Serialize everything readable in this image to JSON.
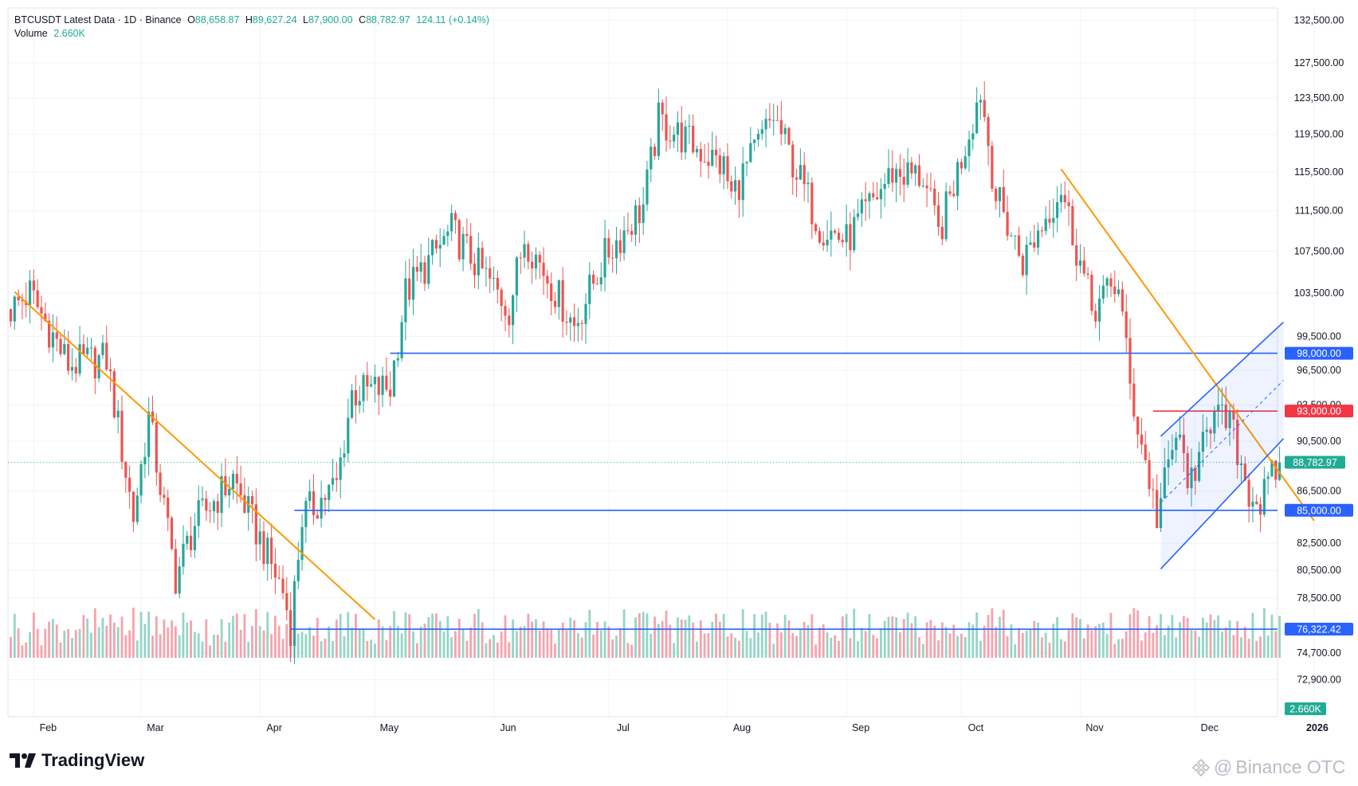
{
  "header": {
    "symbol": "BTCUSDT Latest Data · 1D · Binance",
    "open_label": "O",
    "open": "88,658.87",
    "high_label": "H",
    "high": "89,627.24",
    "low_label": "L",
    "low": "87,900.00",
    "close_label": "C",
    "close": "88,782.97",
    "change": "124.11 (+0.14%)",
    "volume_label": "Volume",
    "volume": "2.660K"
  },
  "brand": {
    "name": "TradingView"
  },
  "watermark": {
    "text": "Binance OTC"
  },
  "colors": {
    "up": "#26a69a",
    "down": "#ef5350",
    "up_vol": "#95d5c6",
    "down_vol": "#f5a3ac",
    "support": "#2962ff",
    "resistance": "#f23645",
    "trend": "#ff9800",
    "grid": "#f0f3fa"
  },
  "chart_data": {
    "type": "candlestick",
    "title": "BTCUSDT Latest Data · 1D · Binance",
    "x_tick_labels": [
      "Feb",
      "Mar",
      "Apr",
      "May",
      "Jun",
      "Jul",
      "Aug",
      "Sep",
      "Oct",
      "Nov",
      "Dec",
      "2026"
    ],
    "y_tick_labels": [
      "72,900.00",
      "74,700.00",
      "78,500.00",
      "80,500.00",
      "82,500.00",
      "86,500.00",
      "90,500.00",
      "93,500.00",
      "96,500.00",
      "99,500.00",
      "103,500.00",
      "107,500.00",
      "111,500.00",
      "115,500.00",
      "119,500.00",
      "123,500.00",
      "127,500.00",
      "132,500.00"
    ],
    "ylim": [
      70500,
      134000
    ],
    "y_scale": "log",
    "price_path": [
      {
        "date": "2025-01-26",
        "price": 102000
      },
      {
        "date": "2025-01-31",
        "price": 103500
      },
      {
        "date": "2025-02-10",
        "price": 97000
      },
      {
        "date": "2025-02-20",
        "price": 97500
      },
      {
        "date": "2025-02-27",
        "price": 84500
      },
      {
        "date": "2025-03-03",
        "price": 92500
      },
      {
        "date": "2025-03-10",
        "price": 80000
      },
      {
        "date": "2025-03-15",
        "price": 84000
      },
      {
        "date": "2025-03-25",
        "price": 87500
      },
      {
        "date": "2025-04-07",
        "price": 79000
      },
      {
        "date": "2025-04-09",
        "price": 76500
      },
      {
        "date": "2025-04-12",
        "price": 84500
      },
      {
        "date": "2025-04-21",
        "price": 87000
      },
      {
        "date": "2025-04-25",
        "price": 94500
      },
      {
        "date": "2025-05-05",
        "price": 95000
      },
      {
        "date": "2025-05-09",
        "price": 103500
      },
      {
        "date": "2025-05-21",
        "price": 109500
      },
      {
        "date": "2025-05-30",
        "price": 105000
      },
      {
        "date": "2025-06-05",
        "price": 102000
      },
      {
        "date": "2025-06-09",
        "price": 109000
      },
      {
        "date": "2025-06-22",
        "price": 100500
      },
      {
        "date": "2025-06-30",
        "price": 107000
      },
      {
        "date": "2025-07-10",
        "price": 112000
      },
      {
        "date": "2025-07-14",
        "price": 121000
      },
      {
        "date": "2025-07-31",
        "price": 116000
      },
      {
        "date": "2025-08-02",
        "price": 113000
      },
      {
        "date": "2025-08-13",
        "price": 121500
      },
      {
        "date": "2025-08-17",
        "price": 117500
      },
      {
        "date": "2025-08-25",
        "price": 110000
      },
      {
        "date": "2025-09-01",
        "price": 108500
      },
      {
        "date": "2025-09-13",
        "price": 115500
      },
      {
        "date": "2025-09-21",
        "price": 115000
      },
      {
        "date": "2025-09-25",
        "price": 109000
      },
      {
        "date": "2025-10-01",
        "price": 117000
      },
      {
        "date": "2025-10-06",
        "price": 124500
      },
      {
        "date": "2025-10-10",
        "price": 113000
      },
      {
        "date": "2025-10-17",
        "price": 106500
      },
      {
        "date": "2025-10-27",
        "price": 114000
      },
      {
        "date": "2025-11-04",
        "price": 102000
      },
      {
        "date": "2025-11-11",
        "price": 104500
      },
      {
        "date": "2025-11-14",
        "price": 95000
      },
      {
        "date": "2025-11-21",
        "price": 84500
      },
      {
        "date": "2025-11-26",
        "price": 91000
      },
      {
        "date": "2025-12-01",
        "price": 86000
      },
      {
        "date": "2025-12-03",
        "price": 92500
      },
      {
        "date": "2025-12-10",
        "price": 92000
      },
      {
        "date": "2025-12-15",
        "price": 86500
      },
      {
        "date": "2025-12-18",
        "price": 85500
      },
      {
        "date": "2025-12-23",
        "price": 88783
      }
    ],
    "horizontal_levels": [
      {
        "price": 98000,
        "label": "98,000.00",
        "color": "#2962ff",
        "from": "2025-05-05"
      },
      {
        "price": 93000,
        "label": "93,000.00",
        "color": "#f23645",
        "from": "2025-11-20"
      },
      {
        "price": 85000,
        "label": "85,000.00",
        "color": "#2962ff",
        "from": "2025-04-10"
      },
      {
        "price": 76322.42,
        "label": "76,322.42",
        "color": "#2962ff",
        "from": "2025-04-09"
      }
    ],
    "last_price": {
      "price": 88782.97,
      "label": "88,782.97",
      "color": "#22ab94"
    },
    "volume_label": "2.660K",
    "trend_lines": [
      {
        "from": {
          "date": "2025-01-27",
          "price": 103600
        },
        "to": {
          "date": "2025-05-01",
          "price": 77000
        },
        "color": "#ff9800"
      },
      {
        "from": {
          "date": "2025-10-27",
          "price": 115800
        },
        "to": {
          "date": "2026-01-01",
          "price": 84200
        },
        "color": "#ff9800"
      }
    ],
    "channel": {
      "color": "#2962ff",
      "upper": {
        "from": {
          "date": "2025-11-22",
          "price": 90900
        },
        "to": {
          "date": "2025-12-24",
          "price": 100800
        }
      },
      "lower": {
        "from": {
          "date": "2025-11-22",
          "price": 80600
        },
        "to": {
          "date": "2025-12-24",
          "price": 90700
        }
      }
    }
  }
}
